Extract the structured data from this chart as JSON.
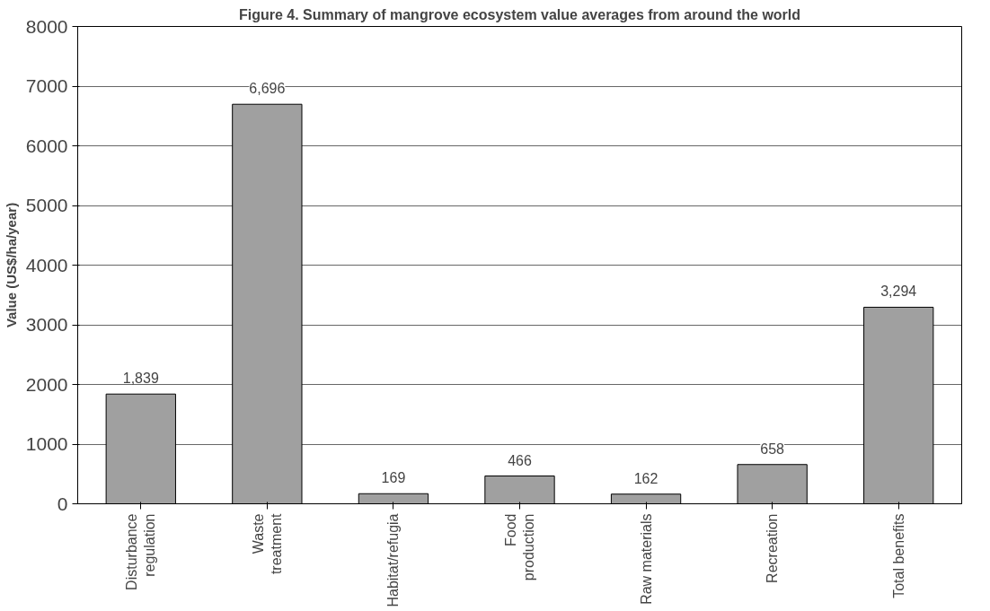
{
  "chart_data": {
    "type": "bar",
    "title": "Figure 4. Summary of mangrove ecosystem value averages from around the world",
    "ylabel": "Value (US$/ha/year)",
    "categories": [
      "Disturbance regulation",
      "Waste treatment",
      "Habitat/refugia",
      "Food production",
      "Raw materials",
      "Recreation",
      "Total benefits"
    ],
    "values": [
      1839,
      6696,
      169,
      466,
      162,
      658,
      3294
    ],
    "value_labels": [
      "1,839",
      "6,696",
      "169",
      "466",
      "162",
      "658",
      "3,294"
    ],
    "color": "#a0a0a0",
    "ylim": [
      0,
      8000
    ],
    "yticks": [
      0,
      1000,
      2000,
      3000,
      4000,
      5000,
      6000,
      7000,
      8000
    ],
    "grid": "y"
  }
}
